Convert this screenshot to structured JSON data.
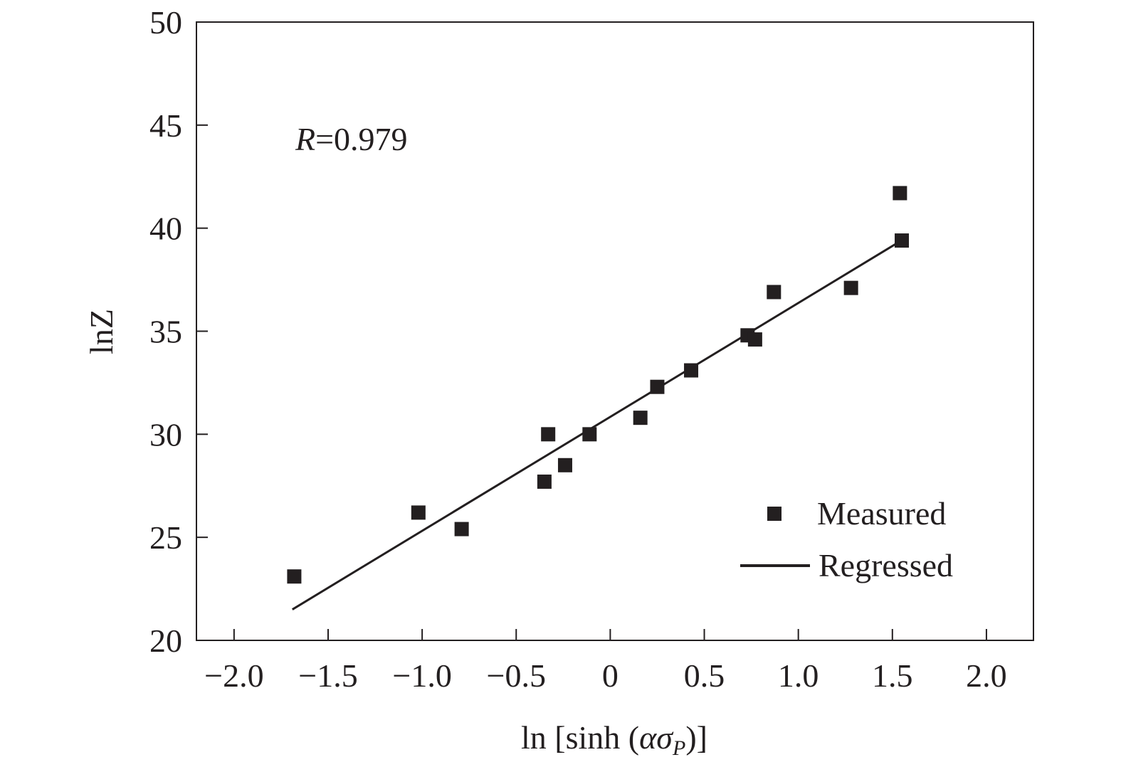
{
  "chart_data": {
    "type": "scatter",
    "xlabel": {
      "prefix": "ln [sinh (",
      "alpha": "α",
      "sigma": "σ",
      "sub": "P",
      "suffix": ")]"
    },
    "ylabel": "lnZ",
    "xlim": [
      -2.2,
      2.25
    ],
    "ylim": [
      20,
      50
    ],
    "xticks": [
      {
        "value": -2.0,
        "label": "−2.0"
      },
      {
        "value": -1.5,
        "label": "−1.5"
      },
      {
        "value": -1.0,
        "label": "−1.0"
      },
      {
        "value": -0.5,
        "label": "−0.5"
      },
      {
        "value": 0,
        "label": "0"
      },
      {
        "value": 0.5,
        "label": "0.5"
      },
      {
        "value": 1.0,
        "label": "1.0"
      },
      {
        "value": 1.5,
        "label": "1.5"
      },
      {
        "value": 2.0,
        "label": "2.0"
      }
    ],
    "yticks": [
      {
        "value": 20,
        "label": "20"
      },
      {
        "value": 25,
        "label": "25"
      },
      {
        "value": 30,
        "label": "30"
      },
      {
        "value": 35,
        "label": "35"
      },
      {
        "value": 40,
        "label": "40"
      },
      {
        "value": 45,
        "label": "45"
      },
      {
        "value": 50,
        "label": "50"
      }
    ],
    "annotation": {
      "italic": "R",
      "text": "=0.979"
    },
    "legend": {
      "placement": "bottom-right",
      "entries": [
        {
          "label": "Measured",
          "marker": "square"
        },
        {
          "label": "Regressed",
          "marker": "line"
        }
      ]
    },
    "series": [
      {
        "name": "Measured",
        "mode": "markers",
        "x": [
          -1.68,
          -1.02,
          -0.79,
          -0.35,
          -0.33,
          -0.24,
          -0.11,
          0.16,
          0.25,
          0.43,
          0.73,
          0.77,
          0.87,
          1.28,
          1.54,
          1.55
        ],
        "y": [
          23.1,
          26.2,
          25.4,
          27.7,
          30.0,
          28.5,
          30.0,
          30.8,
          32.3,
          33.1,
          34.8,
          34.6,
          36.9,
          37.1,
          41.7,
          39.4
        ]
      },
      {
        "name": "Regressed",
        "mode": "line",
        "x": [
          -1.69,
          1.53
        ],
        "y": [
          21.5,
          39.3
        ]
      }
    ],
    "colors": {
      "ink": "#231f20",
      "background": "#ffffff"
    }
  }
}
